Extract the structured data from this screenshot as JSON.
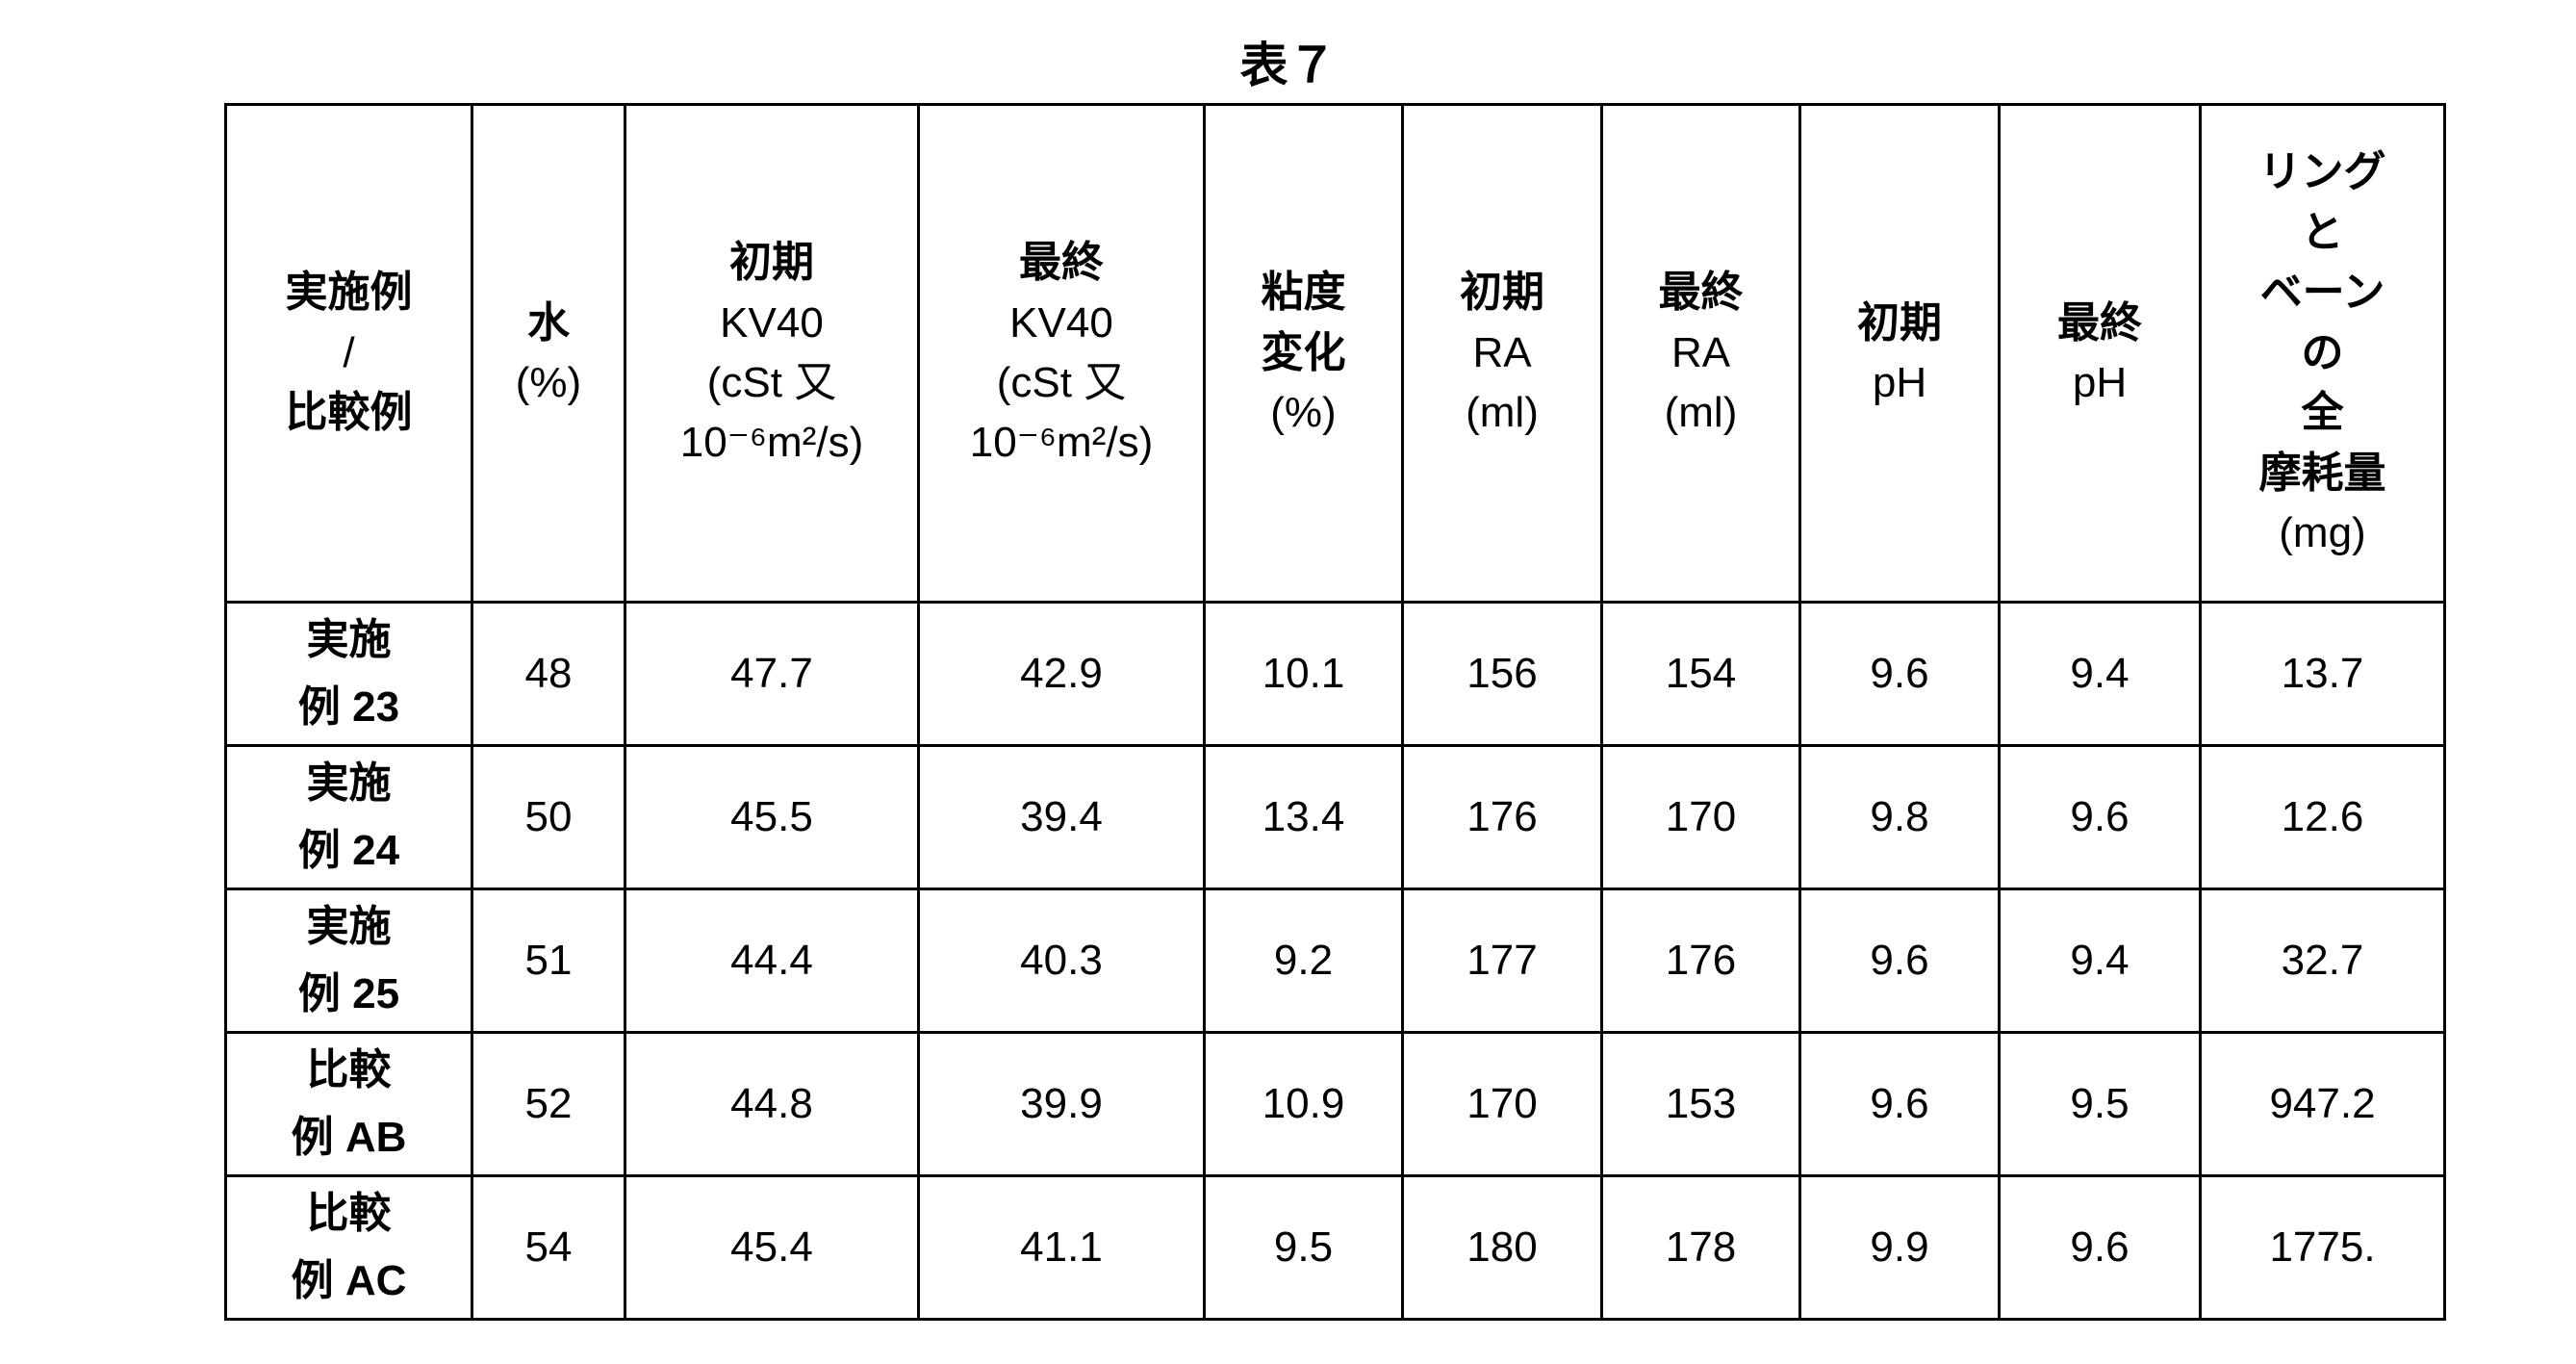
{
  "title": "表７",
  "table": {
    "headers": [
      [
        "実施例",
        "/",
        "比較例"
      ],
      [
        "水",
        "(%)"
      ],
      [
        "初期",
        "KV40",
        "(cSt 又",
        "10⁻⁶m²/s)"
      ],
      [
        "最終",
        "KV40",
        "(cSt 又",
        "10⁻⁶m²/s)"
      ],
      [
        "粘度",
        "変化",
        "(%)"
      ],
      [
        "初期",
        "RA",
        "(ml)"
      ],
      [
        "最終",
        "RA",
        "(ml)"
      ],
      [
        "初期",
        "pH"
      ],
      [
        "最終",
        "pH"
      ],
      [
        "リング",
        "と",
        "ベーン",
        "の",
        "全",
        "摩耗量",
        "(mg)"
      ]
    ],
    "rows": [
      {
        "label": [
          "実施",
          "例 23"
        ],
        "values": [
          "48",
          "47.7",
          "42.9",
          "10.1",
          "156",
          "154",
          "9.6",
          "9.4",
          "13.7"
        ]
      },
      {
        "label": [
          "実施",
          "例 24"
        ],
        "values": [
          "50",
          "45.5",
          "39.4",
          "13.4",
          "176",
          "170",
          "9.8",
          "9.6",
          "12.6"
        ]
      },
      {
        "label": [
          "実施",
          "例 25"
        ],
        "values": [
          "51",
          "44.4",
          "40.3",
          "9.2",
          "177",
          "176",
          "9.6",
          "9.4",
          "32.7"
        ]
      },
      {
        "label": [
          "比較",
          "例 AB"
        ],
        "values": [
          "52",
          "44.8",
          "39.9",
          "10.9",
          "170",
          "153",
          "9.6",
          "9.5",
          "947.2"
        ]
      },
      {
        "label": [
          "比較",
          "例 AC"
        ],
        "values": [
          "54",
          "45.4",
          "41.1",
          "9.5",
          "180",
          "178",
          "9.9",
          "9.6",
          "1775."
        ]
      }
    ]
  }
}
